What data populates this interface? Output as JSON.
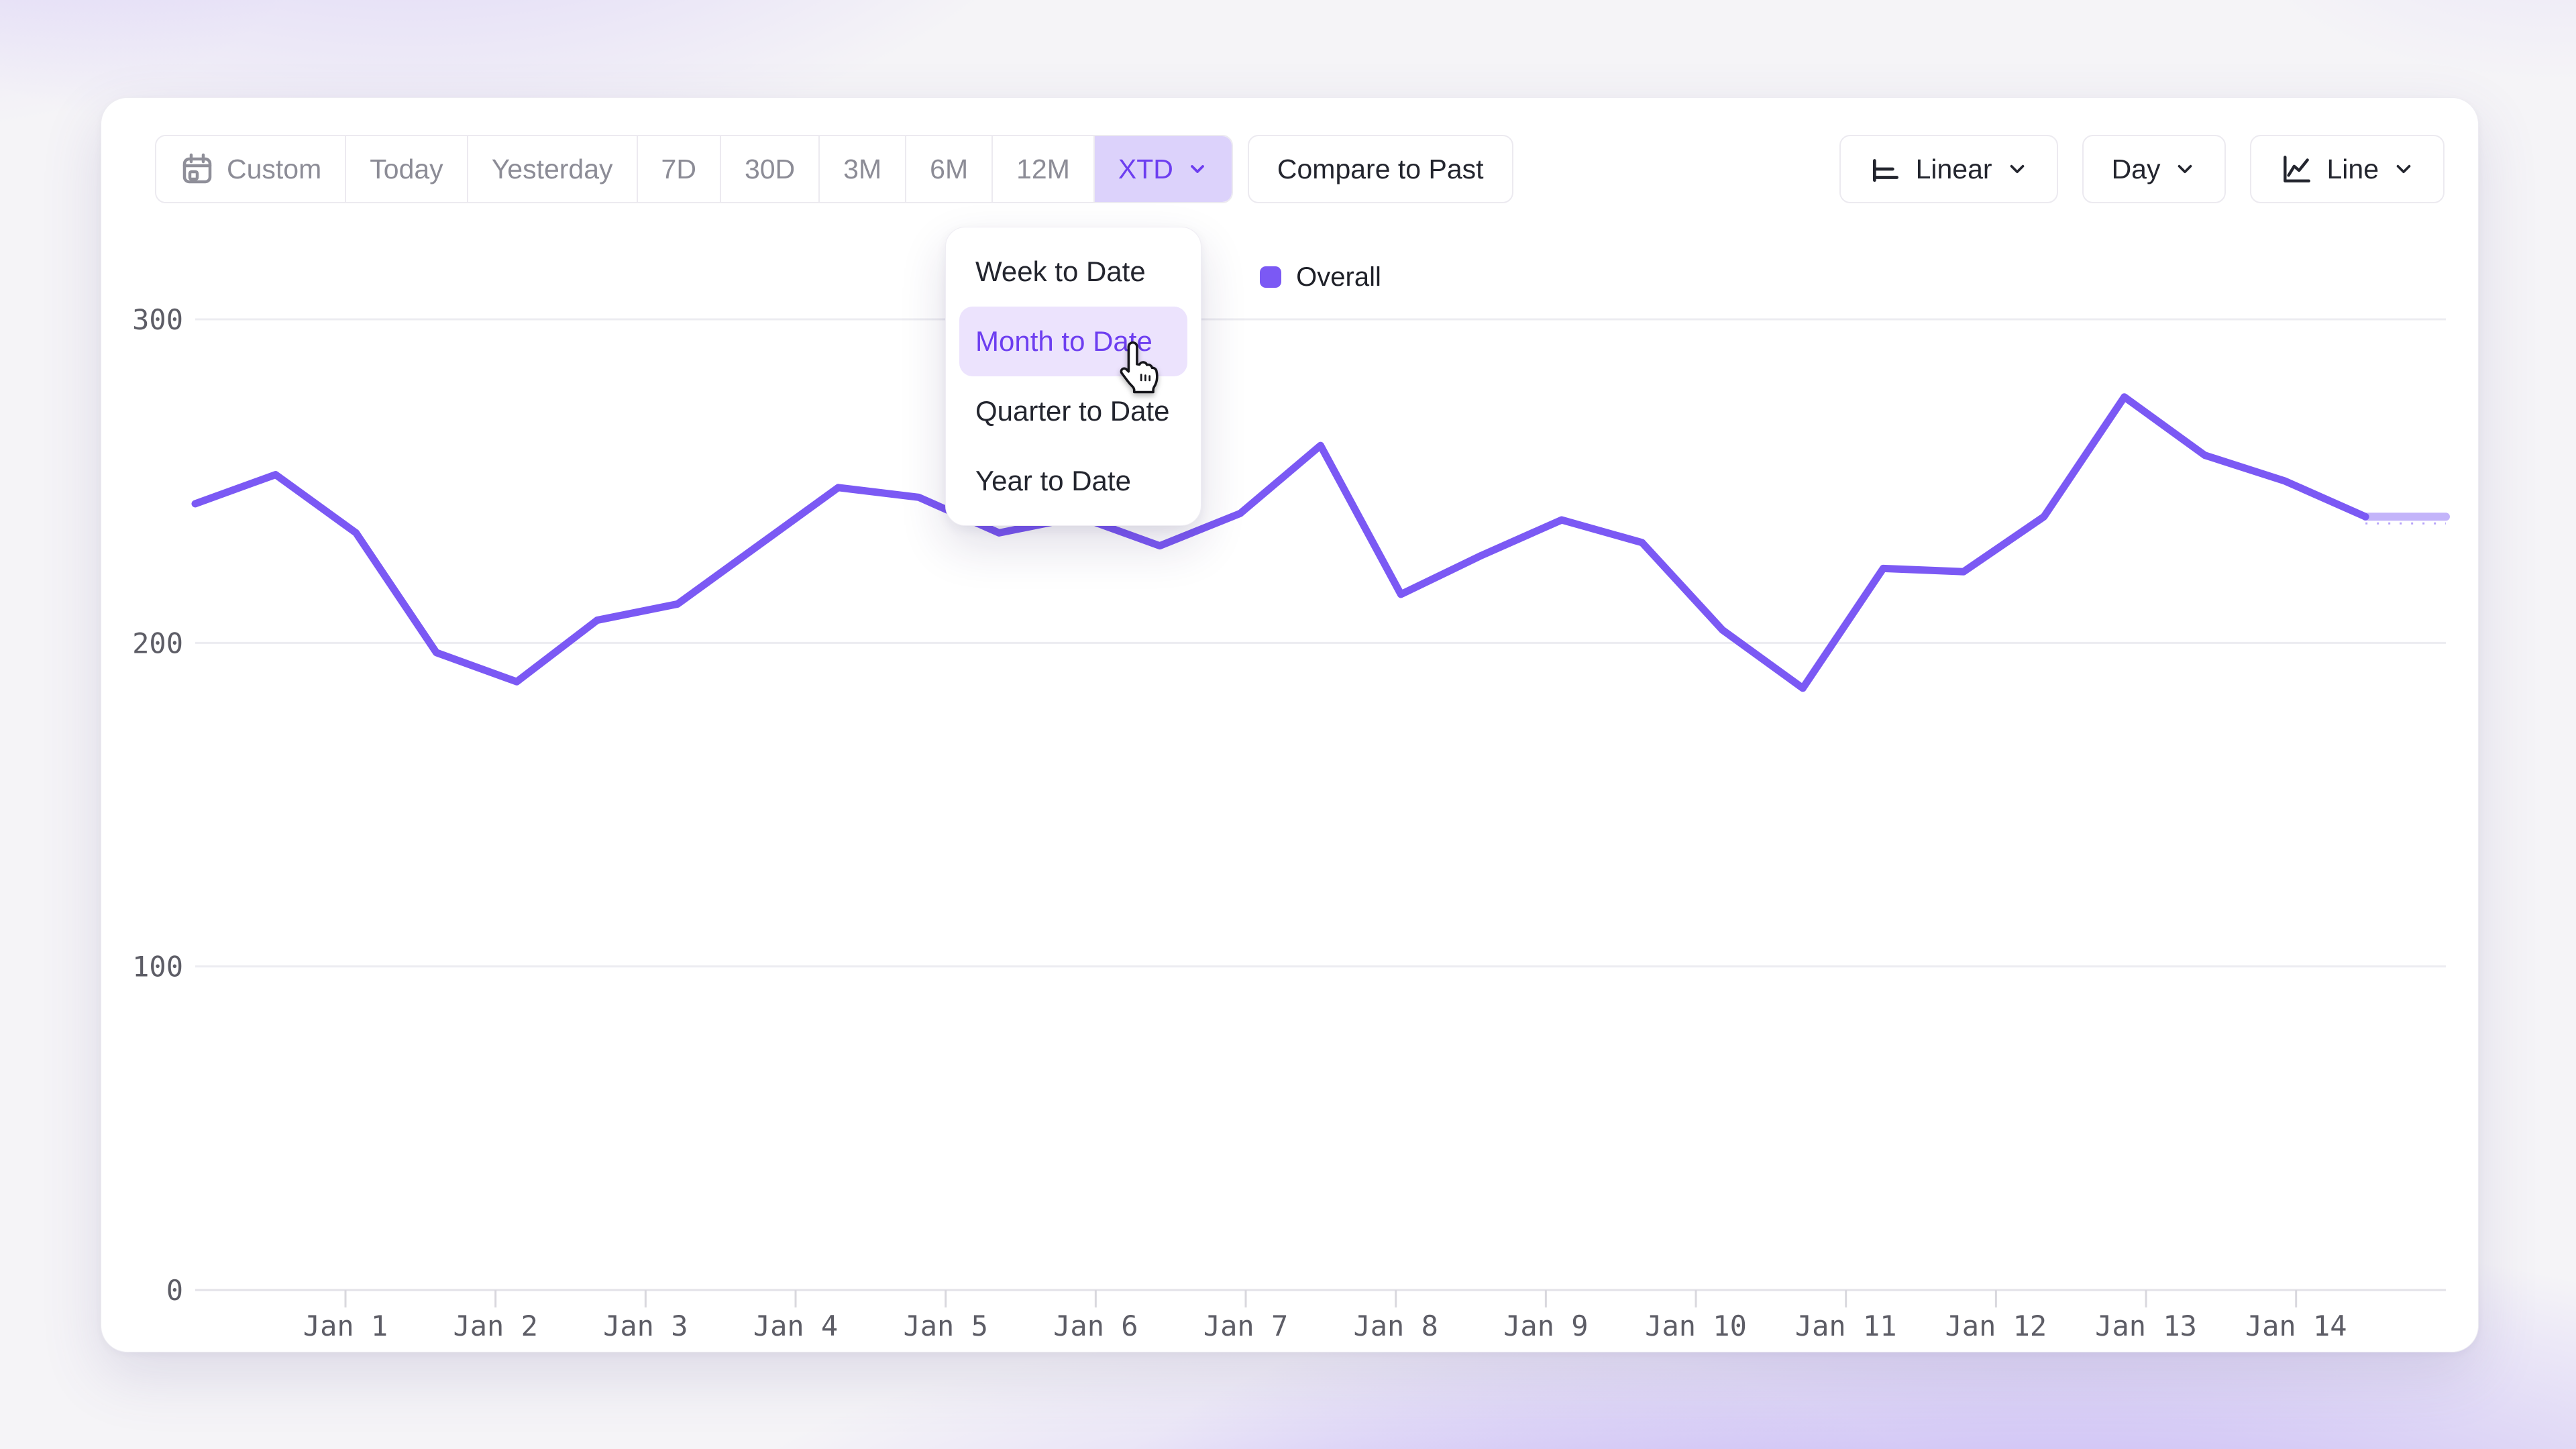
{
  "toolbar": {
    "range_buttons": [
      {
        "label": "Custom",
        "icon": "calendar",
        "selected": false
      },
      {
        "label": "Today",
        "selected": false
      },
      {
        "label": "Yesterday",
        "selected": false
      },
      {
        "label": "7D",
        "selected": false
      },
      {
        "label": "30D",
        "selected": false
      },
      {
        "label": "3M",
        "selected": false
      },
      {
        "label": "6M",
        "selected": false
      },
      {
        "label": "12M",
        "selected": false
      },
      {
        "label": "XTD",
        "selected": true,
        "chevron": true
      }
    ],
    "compare_label": "Compare to Past",
    "scale_label": "Linear",
    "granularity_label": "Day",
    "chart_type_label": "Line"
  },
  "dropdown_menu": {
    "items": [
      {
        "label": "Week to Date",
        "highlighted": false
      },
      {
        "label": "Month to Date",
        "highlighted": true
      },
      {
        "label": "Quarter to Date",
        "highlighted": false
      },
      {
        "label": "Year to Date",
        "highlighted": false
      }
    ]
  },
  "legend": {
    "label": "Overall",
    "swatch_color": "#7b59f4"
  },
  "chart_data": {
    "type": "line",
    "title": "",
    "xlabel": "",
    "ylabel": "",
    "x_tick_labels": [
      "Jan 1",
      "Jan 2",
      "Jan 3",
      "Jan 4",
      "Jan 5",
      "Jan 6",
      "Jan 7",
      "Jan 8",
      "Jan 9",
      "Jan 10",
      "Jan 11",
      "Jan 12",
      "Jan 13",
      "Jan 14"
    ],
    "yticks": [
      0,
      100,
      200,
      300
    ],
    "ylim": [
      0,
      310
    ],
    "grid": "horizontal",
    "legend_position": "top-center",
    "series": [
      {
        "name": "Overall",
        "color": "#7b59f4",
        "x_step_days": 0.5,
        "values": [
          243,
          252,
          234,
          197,
          188,
          207,
          212,
          230,
          248,
          245,
          234,
          239,
          230,
          240,
          261,
          215,
          227,
          238,
          231,
          204,
          186,
          223,
          222,
          239,
          276,
          258,
          250,
          239,
          239
        ],
        "projected_tail_points": 2
      }
    ]
  },
  "colors": {
    "accent": "#6d3ef0",
    "accent_bg": "#dcd2fb",
    "menu_highlight_bg": "#ece3fd",
    "line": "#7b59f4",
    "grid": "#ececf1",
    "axis_line": "#e3e2e8",
    "tick": "#d9d8de",
    "axis_text": "#5d5d66",
    "muted_text": "#8c8c96",
    "dark_text": "#23252e"
  }
}
